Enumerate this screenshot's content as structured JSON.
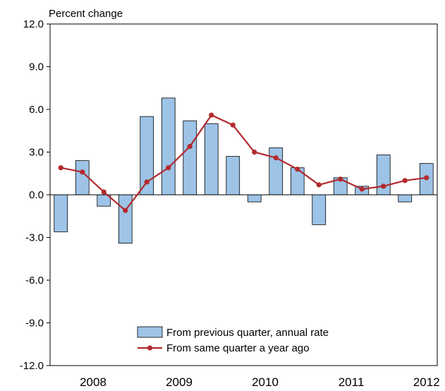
{
  "chart_data": {
    "type": "bar",
    "ylabel": "Percent change",
    "ylim": [
      -12.0,
      12.0
    ],
    "y_ticks": [
      "12.0",
      "9.0",
      "6.0",
      "3.0",
      "0.0",
      "-3.0",
      "-6.0",
      "-9.0",
      "-12.0"
    ],
    "y_tick_values": [
      12,
      9,
      6,
      3,
      0,
      -3,
      -6,
      -9,
      -12
    ],
    "x_labels": [
      {
        "label": "2008",
        "quarter_index": 1.5
      },
      {
        "label": "2009",
        "quarter_index": 5.5
      },
      {
        "label": "2010",
        "quarter_index": 9.5
      },
      {
        "label": "2011",
        "quarter_index": 13.5
      },
      {
        "label": "2012",
        "quarter_index": 17
      }
    ],
    "categories": [
      "2008 Q1",
      "2008 Q2",
      "2008 Q3",
      "2008 Q4",
      "2009 Q1",
      "2009 Q2",
      "2009 Q3",
      "2009 Q4",
      "2010 Q1",
      "2010 Q2",
      "2010 Q3",
      "2010 Q4",
      "2011 Q1",
      "2011 Q2",
      "2011 Q3",
      "2011 Q4",
      "2012 Q1",
      "2012 Q2"
    ],
    "series": [
      {
        "name": "From previous quarter, annual rate",
        "kind": "bar",
        "color": "#9dc3e6",
        "values": [
          -2.6,
          2.4,
          -0.8,
          -3.4,
          5.5,
          6.8,
          5.2,
          5.0,
          2.7,
          -0.5,
          3.3,
          1.9,
          -2.1,
          1.2,
          0.6,
          2.8,
          -0.5,
          2.2
        ]
      },
      {
        "name": "From same quarter a year ago",
        "kind": "line",
        "color": "#b22a2e",
        "values": [
          1.9,
          1.6,
          0.2,
          -1.1,
          0.9,
          1.9,
          3.4,
          5.6,
          4.9,
          3.0,
          2.6,
          1.8,
          0.7,
          1.1,
          0.4,
          0.6,
          1.0,
          1.2
        ]
      }
    ],
    "legend_position": "bottom-center",
    "grid": false
  }
}
